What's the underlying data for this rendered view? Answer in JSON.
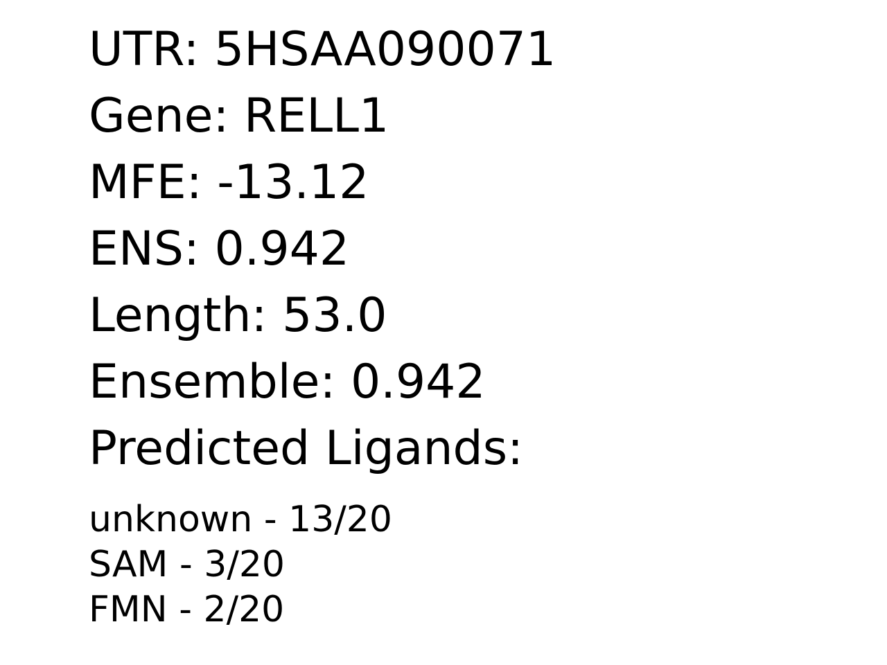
{
  "record": {
    "utr": "UTR: 5HSAA090071",
    "gene": "Gene: RELL1",
    "mfe": "MFE: -13.12",
    "ens": "ENS: 0.942",
    "length": "Length: 53.0",
    "ensemble": "Ensemble: 0.942",
    "ligands_heading": "Predicted Ligands:"
  },
  "ligands": [
    "unknown - 13/20",
    "SAM - 3/20",
    "FMN - 2/20"
  ]
}
